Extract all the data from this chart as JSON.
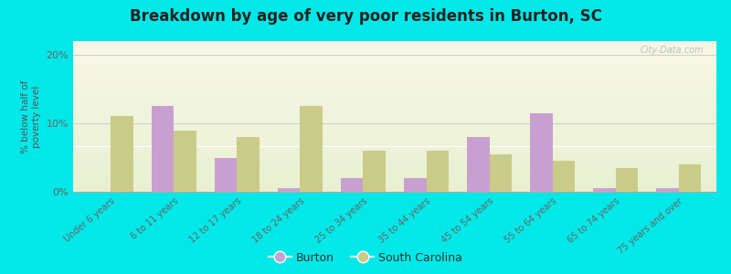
{
  "title": "Breakdown by age of very poor residents in Burton, SC",
  "ylabel": "% below half of\npoverty level",
  "categories": [
    "Under 6 years",
    "6 to 11 years",
    "12 to 17 years",
    "18 to 24 years",
    "25 to 34 years",
    "35 to 44 years",
    "45 to 54 years",
    "55 to 64 years",
    "65 to 74 years",
    "75 years and over"
  ],
  "burton_values": [
    0.0,
    12.5,
    5.0,
    0.5,
    2.0,
    2.0,
    8.0,
    11.5,
    0.5,
    0.5
  ],
  "sc_values": [
    11.0,
    9.0,
    8.0,
    12.5,
    6.0,
    6.0,
    5.5,
    4.5,
    3.5,
    4.0
  ],
  "burton_color": "#c8a0d0",
  "sc_color": "#c8cc88",
  "background_color": "#00e8e8",
  "ylim": [
    0,
    22
  ],
  "yticks": [
    0,
    10,
    20
  ],
  "ytick_labels": [
    "0%",
    "10%",
    "20%"
  ],
  "bar_width": 0.35,
  "legend_burton": "Burton",
  "legend_sc": "South Carolina",
  "watermark": "City-Data.com"
}
